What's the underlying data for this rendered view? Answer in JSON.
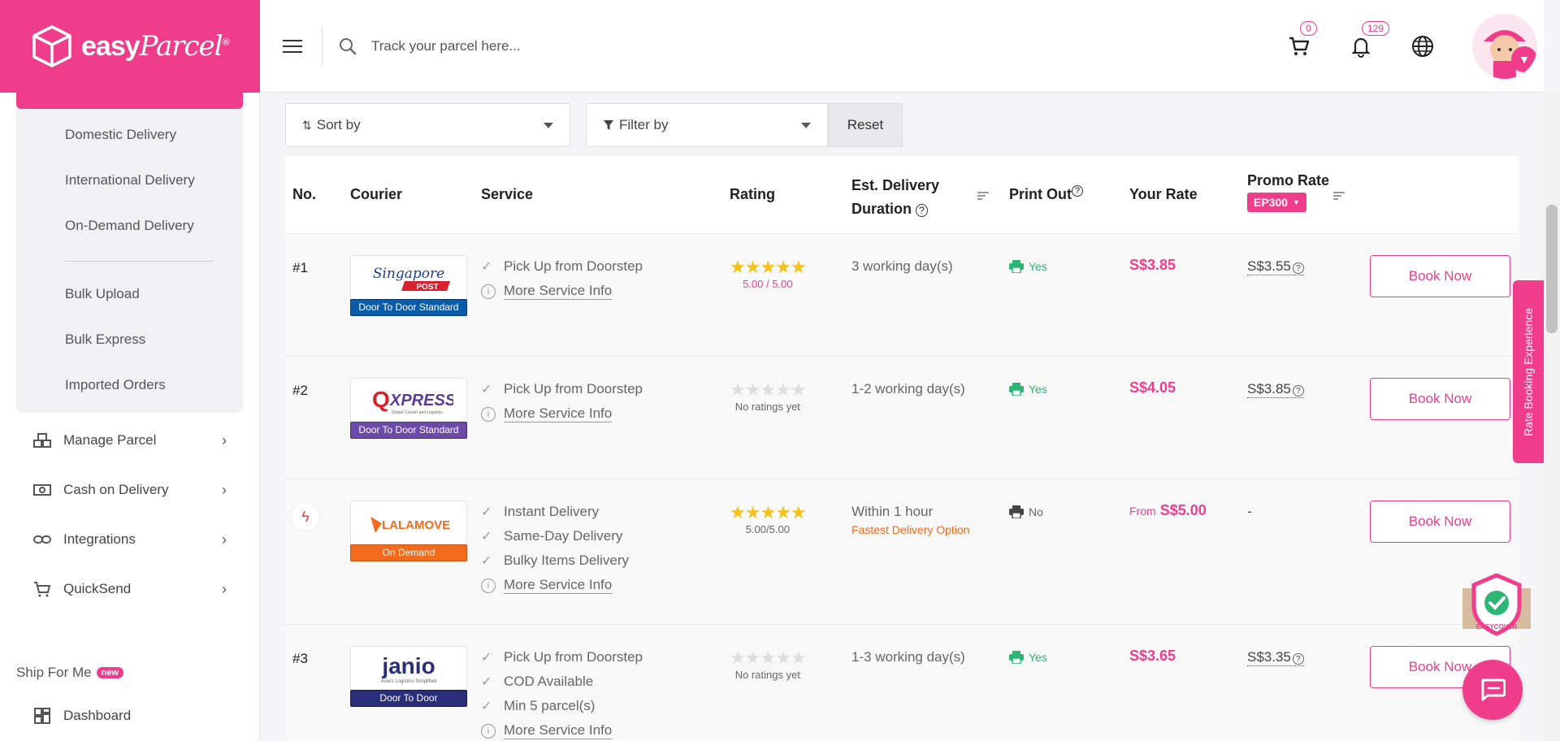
{
  "brand": {
    "name_bold": "easy",
    "name_script": "Parcel",
    "reg": "®"
  },
  "header": {
    "search_placeholder": "Track your parcel here...",
    "cart_count": "0",
    "notification_count": "129"
  },
  "sidebar": {
    "sub_items": [
      "Domestic Delivery",
      "International Delivery",
      "On-Demand Delivery",
      "Bulk Upload",
      "Bulk Express",
      "Imported Orders"
    ],
    "nav_items": [
      "Manage Parcel",
      "Cash on Delivery",
      "Integrations",
      "QuickSend"
    ],
    "ship_for_me": "Ship For Me",
    "new_badge": "new",
    "dashboard": "Dashboard"
  },
  "filters": {
    "sort_label": "Sort by",
    "filter_label": "Filter by",
    "reset_label": "Reset"
  },
  "table": {
    "headers": {
      "no": "No.",
      "courier": "Courier",
      "service": "Service",
      "rating": "Rating",
      "est_line1": "Est. Delivery",
      "est_line2": "Duration",
      "print_out": "Print Out",
      "your_rate": "Your Rate",
      "promo_rate": "Promo Rate",
      "promo_code": "EP300"
    },
    "rows": [
      {
        "no": "#1",
        "courier": "Singapore POST",
        "tag": "Door To Door Standard",
        "services": [
          "Pick Up from Doorstep"
        ],
        "more_info": "More Service Info",
        "rating_text": "5.00 / 5.00",
        "rated": true,
        "est": "3 working day(s)",
        "print": "Yes",
        "your_rate": "S$3.85",
        "promo": "S$3.55",
        "book": "Book Now"
      },
      {
        "no": "#2",
        "courier": "QXPRESS",
        "tag": "Door To Door Standard",
        "services": [
          "Pick Up from Doorstep"
        ],
        "more_info": "More Service Info",
        "rating_text": "No ratings yet",
        "rated": false,
        "est": "1-2 working day(s)",
        "print": "Yes",
        "your_rate": "S$4.05",
        "promo": "S$3.85",
        "book": "Book Now"
      },
      {
        "no": "",
        "courier": "LALAMOVE",
        "tag": "On Demand",
        "services": [
          "Instant Delivery",
          "Same-Day Delivery",
          "Bulky Items Delivery"
        ],
        "more_info": "More Service Info",
        "rating_text": "5.00/5.00",
        "rated": true,
        "est": "Within 1 hour",
        "est_sub": "Fastest Delivery Option",
        "print": "No",
        "your_rate_from": "From",
        "your_rate": "S$5.00",
        "promo": "-",
        "book": "Book Now"
      },
      {
        "no": "#3",
        "courier": "janio",
        "courier_sub": "Asia's Logistics Simplified",
        "tag": "Door To Door",
        "services": [
          "Pick Up from Doorstep",
          "COD Available",
          "Min 5 parcel(s)"
        ],
        "more_info": "More Service Info",
        "rating_text": "No ratings yet",
        "rated": false,
        "est": "1-3 working day(s)",
        "print": "Yes",
        "your_rate": "S$3.65",
        "promo": "S$3.35",
        "book": "Book Now"
      }
    ]
  },
  "floating": {
    "rate_tab": "Rate Booking Experience",
    "easycover": "EASYCOVER"
  },
  "colors": {
    "brand": "#ef3d8b",
    "singpost_tag": "#0a5ca8",
    "qxpress_tag": "#6c4aa8",
    "lalamove_tag": "#f26b1d",
    "janio_tag": "#2a2f7a",
    "yes_green": "#2bb673"
  }
}
